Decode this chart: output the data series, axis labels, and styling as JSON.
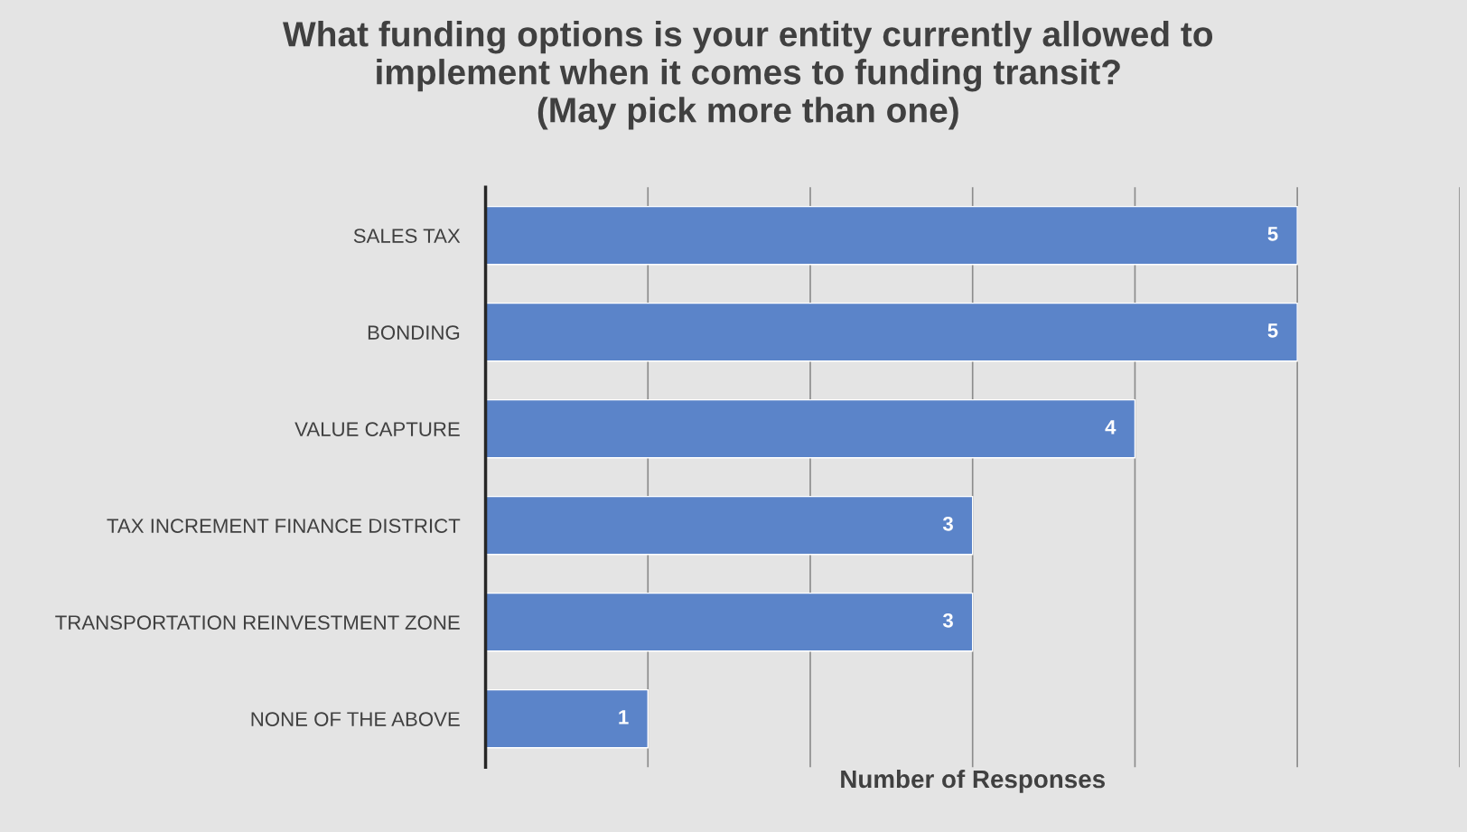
{
  "chart_data": {
    "type": "bar",
    "orientation": "horizontal",
    "title": "What funding options is your entity currently allowed to\nimplement when it comes to funding transit?\n(May pick more than one)",
    "xlabel": "Number of Responses",
    "categories": [
      "SALES TAX",
      "BONDING",
      "VALUE CAPTURE",
      "TAX INCREMENT FINANCE DISTRICT",
      "TRANSPORTATION REINVESTMENT ZONE",
      "NONE OF THE ABOVE"
    ],
    "values": [
      5,
      5,
      4,
      3,
      3,
      1
    ],
    "color": "#5b84c9",
    "xlim": [
      0,
      6
    ],
    "xticks": [
      {
        "value": 0,
        "label": null
      },
      {
        "value": 1,
        "label": null
      },
      {
        "value": 2,
        "label": null
      },
      {
        "value": 3,
        "label": null
      },
      {
        "value": 4,
        "label": null
      },
      {
        "value": 5,
        "label": null
      },
      {
        "value": 6,
        "label": null
      }
    ],
    "grid": "x",
    "tick_labels": "y",
    "data_labels": true,
    "legend": false
  }
}
